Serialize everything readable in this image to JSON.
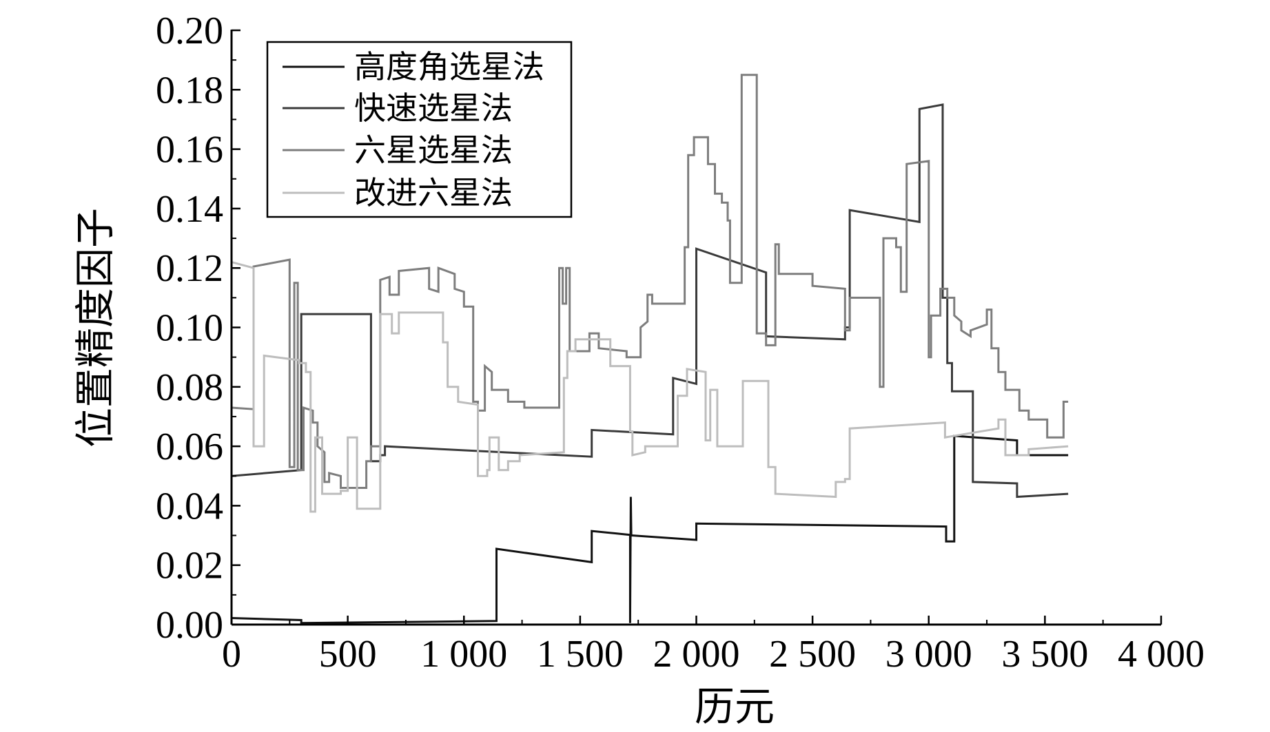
{
  "chart_data": {
    "type": "line",
    "title": "",
    "x_label": "历元",
    "y_label": "位置精度因子",
    "xlim": [
      0,
      4000
    ],
    "ylim": [
      0,
      0.2
    ],
    "grid": false,
    "legend_position": "top-left",
    "x_ticks": [
      0,
      500,
      1000,
      1500,
      2000,
      2500,
      3000,
      3500,
      4000
    ],
    "x_tick_labels": [
      "0",
      "500",
      "1 000",
      "1 500",
      "2 000",
      "2 500",
      "3 000",
      "3 500",
      "4 000"
    ],
    "y_ticks": [
      0,
      0.02,
      0.04,
      0.06,
      0.08,
      0.1,
      0.12,
      0.14,
      0.16,
      0.18,
      0.2
    ],
    "y_tick_labels": [
      "0.00",
      "0.02",
      "0.04",
      "0.06",
      "0.08",
      "0.10",
      "0.12",
      "0.14",
      "0.16",
      "0.18",
      "0.20"
    ],
    "series": [
      {
        "name": "高度角选星法",
        "color": "#111111",
        "points": [
          [
            0,
            0.0022
          ],
          [
            300,
            0.0015
          ],
          [
            300,
            0.0005
          ],
          [
            1140,
            0.0012
          ],
          [
            1140,
            0.0255
          ],
          [
            1550,
            0.021
          ],
          [
            1550,
            0.0315
          ],
          [
            1715,
            0.0302
          ],
          [
            1715,
            0.0005
          ],
          [
            1718,
            0.043
          ],
          [
            1720,
            0.03
          ],
          [
            2000,
            0.0285
          ],
          [
            2000,
            0.034
          ],
          [
            3075,
            0.033
          ],
          [
            3075,
            0.028
          ],
          [
            3110,
            0.028
          ],
          [
            3110,
            0.0635
          ],
          [
            3380,
            0.062
          ],
          [
            3380,
            0.057
          ],
          [
            3600,
            0.057
          ]
        ]
      },
      {
        "name": "快速选星法",
        "color": "#3a3a3a",
        "points": [
          [
            0,
            0.05
          ],
          [
            300,
            0.052
          ],
          [
            300,
            0.1045
          ],
          [
            600,
            0.1045
          ],
          [
            600,
            0.055
          ],
          [
            640,
            0.055
          ],
          [
            640,
            0.057
          ],
          [
            660,
            0.057
          ],
          [
            660,
            0.06
          ],
          [
            1550,
            0.0565
          ],
          [
            1550,
            0.0655
          ],
          [
            1900,
            0.064
          ],
          [
            1900,
            0.083
          ],
          [
            2000,
            0.081
          ],
          [
            2000,
            0.1265
          ],
          [
            2300,
            0.1185
          ],
          [
            2300,
            0.097
          ],
          [
            2640,
            0.096
          ],
          [
            2640,
            0.1
          ],
          [
            2660,
            0.1
          ],
          [
            2660,
            0.1395
          ],
          [
            2960,
            0.1355
          ],
          [
            2960,
            0.1735
          ],
          [
            3060,
            0.175
          ],
          [
            3060,
            0.11
          ],
          [
            3080,
            0.11
          ],
          [
            3080,
            0.088
          ],
          [
            3100,
            0.088
          ],
          [
            3100,
            0.0785
          ],
          [
            3190,
            0.0785
          ],
          [
            3190,
            0.048
          ],
          [
            3380,
            0.0475
          ],
          [
            3380,
            0.043
          ],
          [
            3600,
            0.044
          ]
        ]
      },
      {
        "name": "六星选星法",
        "color": "#7d7d7d",
        "points": [
          [
            0,
            0.073
          ],
          [
            95,
            0.0725
          ],
          [
            95,
            0.1205
          ],
          [
            250,
            0.1228
          ],
          [
            250,
            0.053
          ],
          [
            270,
            0.053
          ],
          [
            270,
            0.115
          ],
          [
            285,
            0.115
          ],
          [
            285,
            0.052
          ],
          [
            310,
            0.052
          ],
          [
            310,
            0.073
          ],
          [
            350,
            0.072
          ],
          [
            350,
            0.068
          ],
          [
            370,
            0.068
          ],
          [
            370,
            0.06
          ],
          [
            400,
            0.058
          ],
          [
            400,
            0.048
          ],
          [
            420,
            0.048
          ],
          [
            420,
            0.051
          ],
          [
            470,
            0.05
          ],
          [
            470,
            0.046
          ],
          [
            580,
            0.046
          ],
          [
            580,
            0.055
          ],
          [
            600,
            0.055
          ],
          [
            600,
            0.06
          ],
          [
            640,
            0.06
          ],
          [
            640,
            0.116
          ],
          [
            680,
            0.117
          ],
          [
            680,
            0.111
          ],
          [
            720,
            0.111
          ],
          [
            720,
            0.119
          ],
          [
            850,
            0.12
          ],
          [
            850,
            0.113
          ],
          [
            890,
            0.112
          ],
          [
            890,
            0.12
          ],
          [
            960,
            0.118
          ],
          [
            960,
            0.113
          ],
          [
            1000,
            0.112
          ],
          [
            1000,
            0.107
          ],
          [
            1040,
            0.107
          ],
          [
            1040,
            0.075
          ],
          [
            1060,
            0.075
          ],
          [
            1060,
            0.072
          ],
          [
            1090,
            0.072
          ],
          [
            1090,
            0.087
          ],
          [
            1120,
            0.085
          ],
          [
            1120,
            0.079
          ],
          [
            1190,
            0.079
          ],
          [
            1190,
            0.075
          ],
          [
            1260,
            0.075
          ],
          [
            1260,
            0.073
          ],
          [
            1410,
            0.073
          ],
          [
            1410,
            0.12
          ],
          [
            1425,
            0.12
          ],
          [
            1425,
            0.108
          ],
          [
            1440,
            0.108
          ],
          [
            1440,
            0.12
          ],
          [
            1455,
            0.12
          ],
          [
            1455,
            0.092
          ],
          [
            1540,
            0.092
          ],
          [
            1540,
            0.098
          ],
          [
            1580,
            0.098
          ],
          [
            1580,
            0.093
          ],
          [
            1700,
            0.092
          ],
          [
            1700,
            0.09
          ],
          [
            1760,
            0.09
          ],
          [
            1760,
            0.1
          ],
          [
            1790,
            0.102
          ],
          [
            1790,
            0.111
          ],
          [
            1810,
            0.111
          ],
          [
            1810,
            0.108
          ],
          [
            1950,
            0.108
          ],
          [
            1950,
            0.127
          ],
          [
            1965,
            0.127
          ],
          [
            1965,
            0.158
          ],
          [
            1990,
            0.158
          ],
          [
            1990,
            0.164
          ],
          [
            2050,
            0.164
          ],
          [
            2050,
            0.155
          ],
          [
            2080,
            0.155
          ],
          [
            2080,
            0.145
          ],
          [
            2110,
            0.145
          ],
          [
            2110,
            0.142
          ],
          [
            2135,
            0.142
          ],
          [
            2135,
            0.136
          ],
          [
            2145,
            0.136
          ],
          [
            2145,
            0.115
          ],
          [
            2195,
            0.115
          ],
          [
            2195,
            0.185
          ],
          [
            2260,
            0.185
          ],
          [
            2260,
            0.098
          ],
          [
            2300,
            0.098
          ],
          [
            2300,
            0.094
          ],
          [
            2340,
            0.094
          ],
          [
            2340,
            0.128
          ],
          [
            2355,
            0.128
          ],
          [
            2355,
            0.118
          ],
          [
            2500,
            0.118
          ],
          [
            2500,
            0.114
          ],
          [
            2640,
            0.113
          ],
          [
            2640,
            0.099
          ],
          [
            2660,
            0.099
          ],
          [
            2660,
            0.11
          ],
          [
            2790,
            0.11
          ],
          [
            2790,
            0.08
          ],
          [
            2805,
            0.08
          ],
          [
            2805,
            0.13
          ],
          [
            2860,
            0.13
          ],
          [
            2860,
            0.127
          ],
          [
            2880,
            0.127
          ],
          [
            2880,
            0.112
          ],
          [
            2905,
            0.112
          ],
          [
            2905,
            0.155
          ],
          [
            3000,
            0.156
          ],
          [
            3000,
            0.09
          ],
          [
            3010,
            0.09
          ],
          [
            3010,
            0.104
          ],
          [
            3050,
            0.104
          ],
          [
            3050,
            0.113
          ],
          [
            3080,
            0.113
          ],
          [
            3080,
            0.11
          ],
          [
            3110,
            0.11
          ],
          [
            3110,
            0.104
          ],
          [
            3140,
            0.102
          ],
          [
            3140,
            0.099
          ],
          [
            3180,
            0.097
          ],
          [
            3180,
            0.099
          ],
          [
            3250,
            0.101
          ],
          [
            3250,
            0.106
          ],
          [
            3270,
            0.106
          ],
          [
            3270,
            0.093
          ],
          [
            3300,
            0.093
          ],
          [
            3300,
            0.085
          ],
          [
            3330,
            0.085
          ],
          [
            3330,
            0.079
          ],
          [
            3390,
            0.079
          ],
          [
            3390,
            0.072
          ],
          [
            3430,
            0.072
          ],
          [
            3430,
            0.069
          ],
          [
            3510,
            0.069
          ],
          [
            3510,
            0.063
          ],
          [
            3580,
            0.063
          ],
          [
            3580,
            0.075
          ],
          [
            3600,
            0.075
          ]
        ]
      },
      {
        "name": "改进六星法",
        "color": "#bdbdbd",
        "points": [
          [
            0,
            0.122
          ],
          [
            95,
            0.12
          ],
          [
            95,
            0.06
          ],
          [
            140,
            0.06
          ],
          [
            140,
            0.0905
          ],
          [
            290,
            0.089
          ],
          [
            290,
            0.088
          ],
          [
            320,
            0.088
          ],
          [
            320,
            0.085
          ],
          [
            340,
            0.085
          ],
          [
            340,
            0.038
          ],
          [
            360,
            0.038
          ],
          [
            360,
            0.063
          ],
          [
            390,
            0.063
          ],
          [
            390,
            0.044
          ],
          [
            470,
            0.044
          ],
          [
            470,
            0.045
          ],
          [
            500,
            0.045
          ],
          [
            500,
            0.063
          ],
          [
            540,
            0.063
          ],
          [
            540,
            0.039
          ],
          [
            640,
            0.039
          ],
          [
            640,
            0.1045
          ],
          [
            690,
            0.1045
          ],
          [
            690,
            0.098
          ],
          [
            720,
            0.098
          ],
          [
            720,
            0.105
          ],
          [
            910,
            0.105
          ],
          [
            910,
            0.095
          ],
          [
            930,
            0.095
          ],
          [
            930,
            0.08
          ],
          [
            975,
            0.08
          ],
          [
            975,
            0.075
          ],
          [
            1060,
            0.074
          ],
          [
            1060,
            0.05
          ],
          [
            1100,
            0.05
          ],
          [
            1100,
            0.052
          ],
          [
            1110,
            0.052
          ],
          [
            1110,
            0.063
          ],
          [
            1150,
            0.063
          ],
          [
            1150,
            0.052
          ],
          [
            1190,
            0.052
          ],
          [
            1190,
            0.055
          ],
          [
            1240,
            0.055
          ],
          [
            1240,
            0.057
          ],
          [
            1430,
            0.058
          ],
          [
            1430,
            0.083
          ],
          [
            1445,
            0.083
          ],
          [
            1445,
            0.092
          ],
          [
            1480,
            0.092
          ],
          [
            1480,
            0.096
          ],
          [
            1630,
            0.096
          ],
          [
            1630,
            0.087
          ],
          [
            1715,
            0.087
          ],
          [
            1715,
            0.065
          ],
          [
            1725,
            0.065
          ],
          [
            1725,
            0.057
          ],
          [
            1780,
            0.058
          ],
          [
            1780,
            0.06
          ],
          [
            1920,
            0.06
          ],
          [
            1920,
            0.077
          ],
          [
            1960,
            0.077
          ],
          [
            1960,
            0.086
          ],
          [
            2040,
            0.085
          ],
          [
            2040,
            0.062
          ],
          [
            2060,
            0.062
          ],
          [
            2060,
            0.079
          ],
          [
            2090,
            0.079
          ],
          [
            2090,
            0.06
          ],
          [
            2200,
            0.06
          ],
          [
            2200,
            0.082
          ],
          [
            2310,
            0.082
          ],
          [
            2310,
            0.053
          ],
          [
            2340,
            0.053
          ],
          [
            2340,
            0.044
          ],
          [
            2600,
            0.043
          ],
          [
            2600,
            0.048
          ],
          [
            2640,
            0.048
          ],
          [
            2640,
            0.049
          ],
          [
            2660,
            0.049
          ],
          [
            2660,
            0.066
          ],
          [
            3070,
            0.068
          ],
          [
            3070,
            0.063
          ],
          [
            3300,
            0.066
          ],
          [
            3300,
            0.069
          ],
          [
            3330,
            0.069
          ],
          [
            3330,
            0.057
          ],
          [
            3430,
            0.057
          ],
          [
            3430,
            0.059
          ],
          [
            3600,
            0.06
          ]
        ]
      }
    ]
  }
}
